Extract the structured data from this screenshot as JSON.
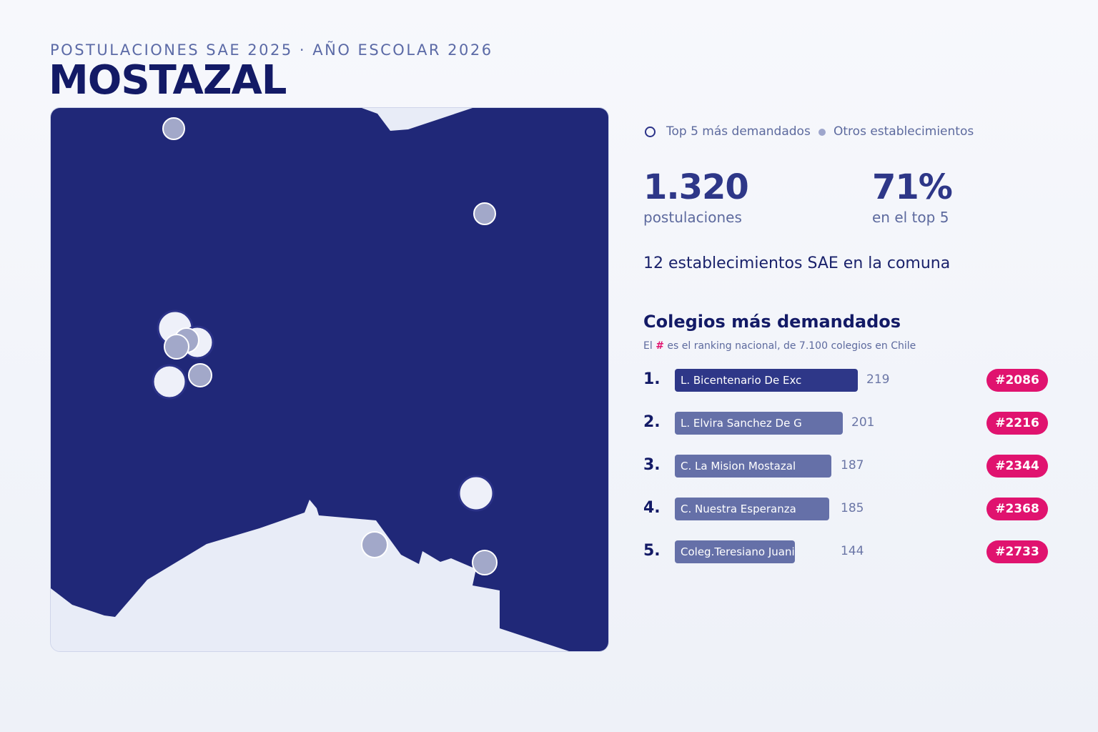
{
  "header": {
    "supertitle": "POSTULACIONES SAE 2025 · AÑO ESCOLAR 2026",
    "title": "MOSTAZAL"
  },
  "legend": {
    "top5_label": "Top 5 más demandados",
    "others_label": "Otros establecimientos"
  },
  "stats": {
    "applications_value": "1.320",
    "applications_label": "postulaciones",
    "top5_share_value": "71%",
    "top5_share_label": "en el top 5"
  },
  "summary": "12 establecimientos SAE en la comuna",
  "ranking": {
    "title": "Colegios más demandados",
    "subtitle_prefix": "El",
    "subtitle_hash": "#",
    "subtitle_suffix": "es el ranking nacional, de 7.100 colegios en Chile",
    "max_value": 219,
    "rows": [
      {
        "rank": "1.",
        "name": "L. Bicentenario De Exc",
        "count": 219,
        "badge": "#2086",
        "color": "#2e3788"
      },
      {
        "rank": "2.",
        "name": "L. Elvira Sanchez De G",
        "count": 201,
        "badge": "#2216",
        "color": "#6570a8"
      },
      {
        "rank": "3.",
        "name": "C. La Mision Mostazal",
        "count": 187,
        "badge": "#2344",
        "color": "#6570a8"
      },
      {
        "rank": "4.",
        "name": "C. Nuestra Esperanza",
        "count": 185,
        "badge": "#2368",
        "color": "#6570a8"
      },
      {
        "rank": "5.",
        "name": "Coleg.Teresiano Juani",
        "count": 144,
        "badge": "#2733",
        "color": "#6570a8"
      }
    ]
  },
  "map": {
    "commune_color": "#202878",
    "outside_color": "#e8ecf7",
    "top5_fill": "#eef0f9",
    "other_fill": "#a2a8c9",
    "schools_top5": 5,
    "schools_other": 7
  }
}
